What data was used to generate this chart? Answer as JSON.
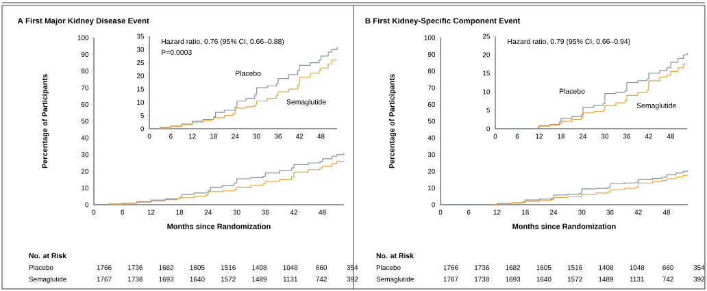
{
  "chart_data": [
    {
      "type": "step",
      "title": "**A**  First Major Kidney Disease Event",
      "xlabel": "Months since Randomization",
      "ylabel": "Percentage of Participants",
      "xlim": [
        0,
        52.5
      ],
      "ylim": [
        0,
        100
      ],
      "xticks": [
        0,
        6,
        12,
        18,
        24,
        30,
        36,
        42,
        48
      ],
      "yticks": [
        0,
        10,
        20,
        30,
        40,
        50,
        60,
        70,
        80,
        90,
        100
      ],
      "annotations": [
        "No. at Risk",
        "Placebo",
        "1766",
        "1736",
        "1682",
        "1605",
        "1516",
        "1408",
        "1048",
        "660",
        "354",
        "Semaglutide",
        "1767",
        "1738",
        "1693",
        "1640",
        "1572",
        "1489",
        "1131",
        "742",
        "392"
      ],
      "series": [
        {
          "color": "#8a8f98",
          "x": [
            0,
            3,
            6,
            9,
            12,
            15,
            18,
            18.5,
            21,
            24,
            24.5,
            27,
            29.5,
            30,
            33,
            35.5,
            36,
            39,
            41.5,
            42,
            45,
            47.5,
            48,
            50,
            51,
            52.5
          ],
          "values": [
            0,
            0.5,
            1,
            1.8,
            2.8,
            3.5,
            4.5,
            6.2,
            7,
            8.2,
            10.5,
            11.5,
            13,
            15.5,
            16.2,
            17,
            19,
            20.5,
            22,
            24,
            25,
            26,
            27.5,
            29,
            30,
            31
          ]
        },
        {
          "color": "#e8a33c",
          "x": [
            3,
            6,
            9,
            12,
            15,
            17.5,
            18,
            21,
            23.5,
            24,
            27,
            29.5,
            30,
            33,
            35.5,
            36,
            39,
            41.5,
            42,
            45,
            47.5,
            48,
            50,
            51,
            52.5
          ],
          "values": [
            0.3,
            0.8,
            1.5,
            2.2,
            3,
            3.5,
            4.2,
            5,
            5.8,
            7.8,
            8.3,
            9,
            10.5,
            11.5,
            12.5,
            14,
            15,
            16.5,
            19.5,
            21,
            22,
            23,
            24.5,
            26,
            26
          ]
        }
      ]
    },
    {
      "type": "step",
      "xlim": [
        0,
        52.5
      ],
      "ylim": [
        0,
        35
      ],
      "xticks": [
        0,
        6,
        12,
        18,
        24,
        30,
        36,
        42,
        48
      ],
      "yticks": [
        0,
        5,
        10,
        15,
        20,
        25,
        30,
        35
      ],
      "annotations": [
        "Hazard ratio, 0.76 (95% CI, 0.66–0.88)",
        "P=0.0003"
      ],
      "series": [
        {
          "name": "Placebo",
          "color": "#8a8f98",
          "x": [
            0,
            3,
            6,
            9,
            12,
            15,
            18,
            18.5,
            21,
            24,
            24.5,
            27,
            29.5,
            30,
            33,
            35.5,
            36,
            39,
            41.5,
            42,
            45,
            47.5,
            48,
            50,
            51,
            52.5
          ],
          "values": [
            0,
            0.5,
            1,
            1.8,
            2.8,
            3.5,
            4.5,
            6.2,
            7,
            8.2,
            10.5,
            11.5,
            13,
            15.5,
            16.2,
            17,
            19,
            20.5,
            22,
            24,
            25,
            26,
            27.5,
            29,
            30,
            31
          ]
        },
        {
          "name": "Semaglutide",
          "color": "#e8a33c",
          "x": [
            3,
            6,
            9,
            12,
            15,
            17.5,
            18,
            21,
            23.5,
            24,
            27,
            29.5,
            30,
            33,
            35.5,
            36,
            39,
            41.5,
            42,
            45,
            47.5,
            48,
            50,
            51,
            52.5
          ],
          "values": [
            0.3,
            0.8,
            1.5,
            2.2,
            3,
            3.5,
            4.2,
            5,
            5.8,
            7.8,
            8.3,
            9,
            10.5,
            11.5,
            12.5,
            14,
            15,
            16.5,
            19.5,
            21,
            22,
            23,
            24.5,
            26,
            26
          ]
        }
      ]
    },
    {
      "type": "step",
      "title": "**B**  First Kidney-Specific Component Event",
      "xlabel": "Months since Randomization",
      "ylabel": "Percentage of Participants",
      "xlim": [
        0,
        52.5
      ],
      "ylim": [
        0,
        100
      ],
      "xticks": [
        0,
        6,
        12,
        18,
        24,
        30,
        36,
        42,
        48
      ],
      "yticks": [
        0,
        10,
        20,
        30,
        40,
        50,
        60,
        70,
        80,
        90,
        100
      ],
      "annotations": [
        "No. at Risk",
        "Placebo",
        "1766",
        "1736",
        "1682",
        "1605",
        "1516",
        "1408",
        "1048",
        "660",
        "354",
        "Semaglutide",
        "1767",
        "1738",
        "1693",
        "1640",
        "1572",
        "1489",
        "1131",
        "742",
        "392"
      ],
      "series": [
        {
          "color": "#8a8f98",
          "x": [
            0,
            11.5,
            12,
            15,
            17.5,
            18,
            21,
            23.5,
            24,
            27,
            29.5,
            30,
            33,
            35.5,
            36,
            39,
            41.5,
            42,
            45,
            47,
            48,
            50,
            51.5,
            52.5
          ],
          "values": [
            0,
            0.2,
            0.8,
            1.2,
            1.8,
            2.8,
            3.3,
            3.8,
            5.8,
            6.3,
            6.8,
            9.5,
            9.8,
            10.3,
            12.5,
            13,
            13.5,
            15,
            15.7,
            16.5,
            18,
            19,
            20,
            20.5
          ]
        },
        {
          "color": "#e8a33c",
          "x": [
            11.5,
            12,
            15,
            17.5,
            18,
            21,
            23.5,
            24,
            27,
            29.5,
            30,
            33,
            35.5,
            36,
            39,
            41.5,
            42,
            45,
            47,
            48,
            50,
            51.5,
            52.5
          ],
          "values": [
            0.2,
            0.7,
            1,
            1.3,
            2,
            2.5,
            3,
            4.3,
            4.7,
            5,
            6.3,
            7,
            7.6,
            9,
            9.8,
            10.5,
            13,
            14,
            14.5,
            15.5,
            16.5,
            17.5,
            17.5
          ]
        }
      ]
    },
    {
      "type": "step",
      "xlim": [
        0,
        52.5
      ],
      "ylim": [
        0,
        25
      ],
      "xticks": [
        0,
        6,
        12,
        18,
        24,
        30,
        36,
        42,
        48
      ],
      "yticks": [
        0,
        5,
        10,
        15,
        20,
        25
      ],
      "annotations": [
        "Hazard ratio, 0.79 (95% CI, 0.66–0.94)"
      ],
      "series": [
        {
          "name": "Placebo",
          "color": "#8a8f98",
          "x": [
            0,
            11.5,
            12,
            15,
            17.5,
            18,
            21,
            23.5,
            24,
            27,
            29.5,
            30,
            33,
            35.5,
            36,
            39,
            41.5,
            42,
            45,
            47,
            48,
            50,
            51.5,
            52.5
          ],
          "values": [
            0,
            0.2,
            0.8,
            1.2,
            1.8,
            2.8,
            3.3,
            3.8,
            5.8,
            6.3,
            6.8,
            9.5,
            9.8,
            10.3,
            12.5,
            13,
            13.5,
            15,
            15.7,
            16.5,
            18,
            19,
            20,
            20.5
          ]
        },
        {
          "name": "Semaglutide",
          "color": "#e8a33c",
          "x": [
            11.5,
            12,
            15,
            17.5,
            18,
            21,
            23.5,
            24,
            27,
            29.5,
            30,
            33,
            35.5,
            36,
            39,
            41.5,
            42,
            45,
            47,
            48,
            50,
            51.5,
            52.5
          ],
          "values": [
            0.2,
            0.7,
            1,
            1.3,
            2,
            2.5,
            3,
            4.3,
            4.7,
            5,
            6.3,
            7,
            7.6,
            9,
            9.8,
            10.5,
            13,
            14,
            14.5,
            15.5,
            16.5,
            17.5,
            17.5
          ]
        }
      ]
    }
  ]
}
